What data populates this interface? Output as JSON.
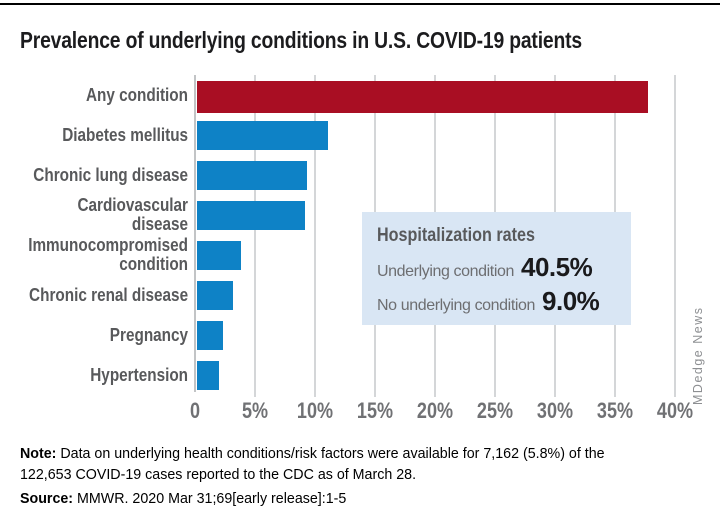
{
  "header": {
    "title": "Prevalence of underlying conditions in U.S. COVID-19 patients"
  },
  "chart_data": {
    "type": "bar",
    "orientation": "horizontal",
    "title": "Prevalence of underlying conditions in U.S. COVID-19 patients",
    "categories": [
      "Any condition",
      "Diabetes mellitus",
      "Chronic lung disease",
      "Cardiovascular disease",
      "Immunocompromised condition",
      "Chronic renal disease",
      "Pregnancy",
      "Hypertension"
    ],
    "values": [
      37.6,
      10.9,
      9.2,
      9.0,
      3.7,
      3.0,
      2.2,
      1.8
    ],
    "unit": "%",
    "xlabel": "",
    "ylabel": "",
    "xlim": [
      0,
      40
    ],
    "x_ticks": [
      "0",
      "5%",
      "10%",
      "15%",
      "20%",
      "25%",
      "30%",
      "35%",
      "40%"
    ],
    "grid": true,
    "legend": false,
    "highlight_index": 0
  },
  "callout": {
    "title": "Hospitalization rates",
    "rows": [
      {
        "label": "Underlying condition",
        "value": "40.5%"
      },
      {
        "label": "No underlying condition",
        "value": "9.0%"
      }
    ]
  },
  "footnote": {
    "prefix": "Note:",
    "line1": "Data on underlying health conditions/risk factors were available for 7,162 (5.8%) of the",
    "line2": "122,653 COVID-19 cases reported to the CDC as of March 28."
  },
  "source": {
    "prefix": "Source:",
    "text": "MMWR. 2020 Mar 31;69[early release]:1-5"
  },
  "watermark": "MDedge News",
  "colors": {
    "highlight_bar": "#a90e23",
    "bar": "#0e82c6",
    "callout_bg": "#d9e6f4",
    "gridline": "#d4d6d8",
    "axis_line": "#c2c4c6",
    "category_label": "#58595b",
    "tick_label": "#707174",
    "callout_label": "#6d6e71",
    "callout_value": "#1a1a1c",
    "text": "#1c1c1e",
    "watermark": "#8d8f92",
    "top_rule": "#000000"
  }
}
